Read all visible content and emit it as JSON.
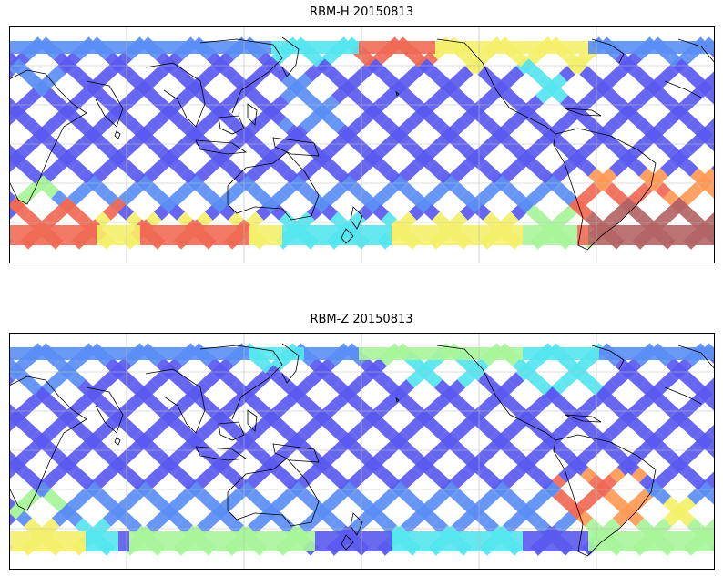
{
  "panels": [
    {
      "title": "RBM-H 20150813",
      "colors": {
        "low": "#5a5af0",
        "low2": "#5b8ef5",
        "mid": "#55e6f0",
        "mid2": "#a8f59a",
        "high": "#f5f06a",
        "high2": "#ff9a55",
        "peak": "#f06a55",
        "extreme": "#b46464"
      }
    },
    {
      "title": "RBM-Z 20150813",
      "colors": {
        "low": "#5a5af0",
        "low2": "#5b8ef5",
        "mid": "#55e6f0",
        "mid2": "#a8f59a",
        "high": "#f5f06a",
        "high2": "#ff9a55",
        "peak": "#f06a55"
      }
    }
  ],
  "map": {
    "projection": "cylindrical",
    "graticule": "on",
    "coastlines": "black"
  }
}
